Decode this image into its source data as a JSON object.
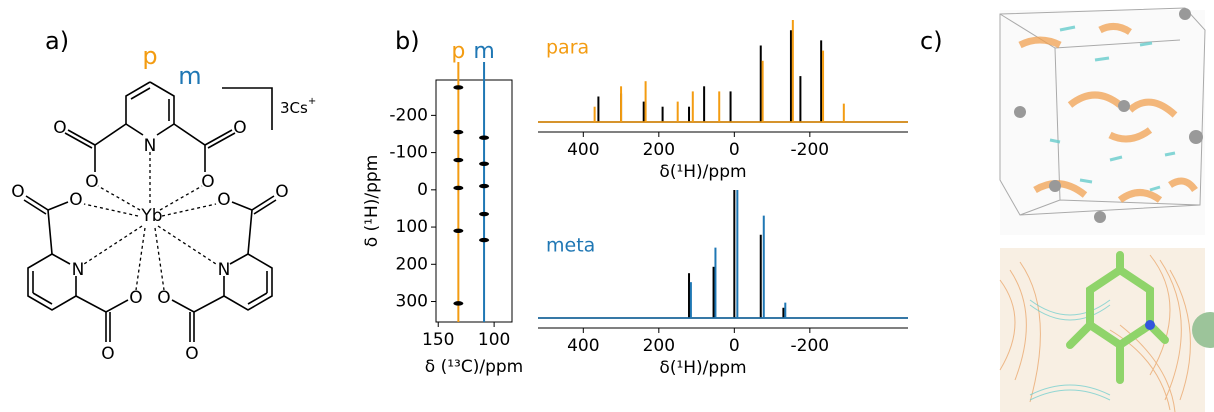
{
  "panel_labels": [
    "a)",
    "b)",
    "c)"
  ],
  "structure": {
    "atoms": [
      "N",
      "O",
      "O",
      "O",
      "O",
      "N",
      "O",
      "O",
      "O",
      "O",
      "N",
      "O",
      "O",
      "O",
      "O",
      "Yb"
    ],
    "ring_labels": [
      "p",
      "m"
    ],
    "counterion": {
      "text": "3Cs",
      "charge": "+"
    }
  },
  "chart_data": [
    {
      "type": "scatter",
      "xlabel": "δ (¹³C)/ppm",
      "ylabel": "δ (¹H)/ppm",
      "xlim": [
        152,
        84
      ],
      "xticks": [
        150,
        100
      ],
      "ylim": [
        355,
        -295
      ],
      "yticks": [
        -200,
        -100,
        0,
        100,
        200,
        300
      ],
      "series": [
        {
          "name": "p",
          "color": "#f39c12",
          "x": [
            132,
            132,
            132,
            132,
            132,
            132
          ],
          "values": [
            -275,
            -155,
            -80,
            -5,
            110,
            305
          ]
        },
        {
          "name": "m",
          "color": "#1f77b4",
          "x": [
            109,
            109,
            109,
            109,
            109
          ],
          "values": [
            -140,
            -70,
            -10,
            65,
            135
          ]
        }
      ]
    },
    {
      "type": "stick",
      "title": "para",
      "title_color": "#f39c12",
      "xlabel": "δ(¹H)/ppm",
      "xlim": [
        520,
        -460
      ],
      "xticks": [
        400,
        200,
        0,
        -200
      ],
      "ylim": [
        0,
        1
      ],
      "series": [
        {
          "color": "#000000",
          "x": [
            360,
            300,
            240,
            190,
            120,
            80,
            10,
            -70,
            -150,
            -175,
            -230
          ],
          "values": [
            0.25,
            0.28,
            0.2,
            0.15,
            0.15,
            0.35,
            0.3,
            0.75,
            0.9,
            0.45,
            0.8
          ]
        },
        {
          "color": "#f39c12",
          "x": [
            370,
            300,
            235,
            150,
            110,
            40,
            -75,
            -155,
            -235,
            -290
          ],
          "values": [
            0.15,
            0.35,
            0.4,
            0.2,
            0.3,
            0.3,
            0.6,
            1.0,
            0.7,
            0.18
          ]
        }
      ]
    },
    {
      "type": "stick",
      "title": "meta",
      "title_color": "#1f77b4",
      "xlabel": "δ(¹H)/ppm",
      "xlim": [
        520,
        -460
      ],
      "xticks": [
        400,
        200,
        0,
        -200
      ],
      "ylim": [
        0,
        1
      ],
      "series": [
        {
          "color": "#000000",
          "x": [
            120,
            55,
            0,
            -70,
            -130
          ],
          "values": [
            0.35,
            0.4,
            1.0,
            0.65,
            0.08
          ]
        },
        {
          "color": "#1f77b4",
          "x": [
            115,
            50,
            -8,
            -78,
            -135
          ],
          "values": [
            0.28,
            0.55,
            1.0,
            0.8,
            0.12
          ]
        }
      ]
    }
  ]
}
